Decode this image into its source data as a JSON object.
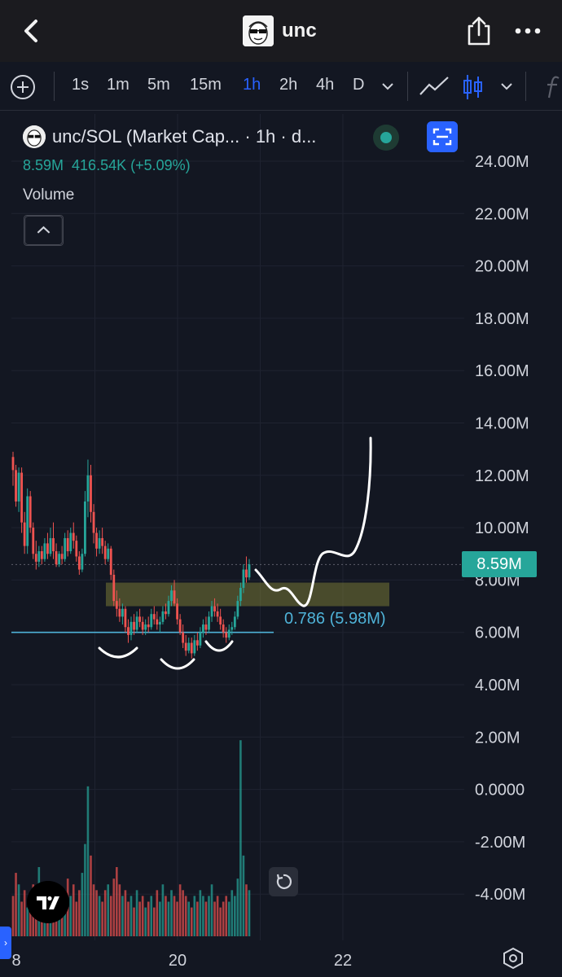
{
  "header": {
    "title": "unc",
    "back_icon": "chevron-left-icon",
    "share_icon": "share-icon",
    "more_icon": "more-horizontal-icon"
  },
  "toolbar": {
    "timeframes": [
      "1s",
      "1m",
      "5m",
      "15m",
      "1h",
      "2h",
      "4h",
      "D"
    ],
    "active_timeframe": "1h",
    "icons": [
      "add-icon",
      "chevron-down-icon",
      "line-drawing-icon",
      "candles-icon",
      "chevron-down-icon",
      "indicators-icon"
    ]
  },
  "legend": {
    "title": "unc/SOL (Market Cap... · 1h · d...",
    "value": "8.59M",
    "change": "416.54K (+5.09%)",
    "volume_label": "Volume"
  },
  "price_badge": "8.59M",
  "fib_label": "0.786 (5.98M)",
  "colors": {
    "background": "#131722",
    "up": "#26a69a",
    "down": "#ef5350",
    "accent": "#2962ff",
    "fib": "#4fb3d8",
    "zone": "#8b8b3a"
  },
  "chart_data": {
    "type": "candlestick",
    "title": "",
    "y_axis": {
      "ticks": [
        "24.00M",
        "22.00M",
        "20.00M",
        "18.00M",
        "16.00M",
        "14.00M",
        "12.00M",
        "10.00M",
        "8.00M",
        "6.00M",
        "4.00M",
        "2.00M",
        "0.0000",
        "-2.00M",
        "-4.00M"
      ],
      "range": [
        -4.5,
        24.5
      ],
      "unit": "M"
    },
    "x_axis": {
      "ticks": [
        "8",
        "20",
        "22"
      ],
      "tick_positions": [
        18,
        20,
        22
      ],
      "range": [
        18,
        22.6
      ]
    },
    "last_price": 8.59,
    "support_line": 6.0,
    "fib_zone": [
      7.0,
      7.9
    ],
    "candles": [
      [
        12.7,
        12.9,
        11.6,
        12.2
      ],
      [
        12.2,
        12.4,
        10.8,
        11.0
      ],
      [
        11.0,
        12.3,
        10.6,
        12.1
      ],
      [
        12.1,
        12.3,
        9.8,
        10.2
      ],
      [
        10.2,
        10.6,
        9.0,
        9.3
      ],
      [
        9.3,
        11.5,
        9.0,
        11.2
      ],
      [
        11.2,
        11.4,
        9.8,
        10.0
      ],
      [
        10.0,
        10.2,
        8.8,
        9.0
      ],
      [
        9.0,
        9.5,
        8.4,
        8.7
      ],
      [
        8.7,
        9.3,
        8.5,
        9.1
      ],
      [
        9.1,
        9.3,
        8.6,
        8.8
      ],
      [
        8.8,
        9.6,
        8.7,
        9.4
      ],
      [
        9.4,
        9.8,
        8.8,
        9.0
      ],
      [
        9.0,
        10.0,
        8.9,
        9.6
      ],
      [
        9.6,
        10.2,
        8.8,
        9.1
      ],
      [
        9.1,
        9.4,
        8.5,
        8.6
      ],
      [
        8.6,
        9.1,
        8.5,
        9.0
      ],
      [
        9.0,
        9.3,
        8.6,
        8.8
      ],
      [
        8.8,
        9.8,
        8.7,
        9.6
      ],
      [
        9.6,
        9.9,
        8.9,
        9.1
      ],
      [
        9.1,
        10.0,
        9.0,
        9.8
      ],
      [
        9.8,
        10.2,
        9.2,
        9.5
      ],
      [
        9.5,
        9.7,
        8.7,
        8.9
      ],
      [
        8.9,
        9.1,
        8.2,
        8.4
      ],
      [
        8.4,
        9.2,
        8.3,
        9.0
      ],
      [
        9.0,
        11.4,
        8.9,
        11.0
      ],
      [
        11.0,
        12.6,
        10.4,
        12.0
      ],
      [
        12.0,
        12.4,
        10.2,
        10.6
      ],
      [
        10.6,
        10.9,
        9.4,
        9.8
      ],
      [
        9.8,
        10.0,
        8.9,
        9.2
      ],
      [
        9.2,
        9.9,
        9.0,
        9.6
      ],
      [
        9.6,
        10.0,
        9.0,
        9.3
      ],
      [
        9.3,
        9.5,
        8.6,
        8.8
      ],
      [
        8.8,
        9.4,
        8.7,
        9.2
      ],
      [
        9.2,
        9.3,
        8.0,
        8.2
      ],
      [
        8.2,
        8.4,
        7.0,
        7.2
      ],
      [
        7.2,
        7.6,
        6.6,
        6.9
      ],
      [
        6.9,
        7.3,
        6.4,
        6.6
      ],
      [
        6.6,
        7.1,
        6.3,
        6.9
      ],
      [
        6.9,
        7.0,
        6.0,
        6.2
      ],
      [
        6.2,
        6.5,
        5.6,
        5.9
      ],
      [
        5.9,
        6.6,
        5.7,
        6.4
      ],
      [
        6.4,
        6.7,
        5.9,
        6.1
      ],
      [
        6.1,
        6.8,
        6.0,
        6.6
      ],
      [
        6.6,
        6.9,
        6.2,
        6.4
      ],
      [
        6.4,
        6.6,
        5.9,
        6.1
      ],
      [
        6.1,
        6.5,
        5.9,
        6.3
      ],
      [
        6.3,
        6.6,
        6.0,
        6.2
      ],
      [
        6.2,
        6.9,
        6.1,
        6.7
      ],
      [
        6.7,
        7.0,
        6.3,
        6.5
      ],
      [
        6.5,
        6.8,
        6.1,
        6.3
      ],
      [
        6.3,
        6.6,
        6.0,
        6.4
      ],
      [
        6.4,
        7.0,
        6.3,
        6.8
      ],
      [
        6.8,
        7.1,
        6.5,
        6.7
      ],
      [
        6.7,
        7.4,
        6.6,
        7.2
      ],
      [
        7.2,
        7.8,
        7.0,
        7.6
      ],
      [
        7.6,
        8.0,
        7.0,
        7.1
      ],
      [
        7.1,
        7.3,
        6.3,
        6.5
      ],
      [
        6.5,
        6.7,
        5.9,
        6.0
      ],
      [
        6.0,
        6.3,
        5.4,
        5.6
      ],
      [
        5.6,
        5.9,
        5.1,
        5.3
      ],
      [
        5.3,
        5.8,
        5.2,
        5.6
      ],
      [
        5.6,
        5.8,
        5.0,
        5.2
      ],
      [
        5.2,
        5.9,
        5.1,
        5.7
      ],
      [
        5.7,
        6.0,
        5.3,
        5.5
      ],
      [
        5.5,
        6.2,
        5.4,
        6.0
      ],
      [
        6.0,
        6.5,
        5.8,
        6.3
      ],
      [
        6.3,
        6.6,
        5.9,
        6.1
      ],
      [
        6.1,
        6.8,
        6.0,
        6.6
      ],
      [
        6.6,
        7.2,
        6.4,
        7.0
      ],
      [
        7.0,
        7.3,
        6.6,
        6.8
      ],
      [
        6.8,
        7.1,
        6.4,
        6.6
      ],
      [
        6.6,
        6.9,
        6.1,
        6.3
      ],
      [
        6.3,
        6.5,
        5.8,
        6.0
      ],
      [
        6.0,
        6.2,
        5.6,
        5.8
      ],
      [
        5.8,
        6.3,
        5.7,
        6.1
      ],
      [
        6.1,
        6.4,
        5.9,
        6.2
      ],
      [
        6.2,
        6.8,
        6.1,
        6.6
      ],
      [
        6.6,
        7.4,
        6.5,
        7.2
      ],
      [
        7.2,
        7.9,
        7.0,
        7.7
      ],
      [
        7.7,
        8.6,
        7.5,
        8.4
      ],
      [
        8.4,
        8.9,
        7.9,
        8.1
      ],
      [
        8.1,
        8.8,
        8.0,
        8.6
      ]
    ],
    "volumes": [
      0.7,
      1.1,
      0.9,
      0.6,
      0.8,
      0.5,
      0.7,
      0.9,
      0.6,
      1.2,
      0.8,
      0.7,
      0.9,
      0.6,
      0.8,
      0.5,
      0.7,
      0.6,
      0.8,
      1.0,
      0.7,
      0.9,
      0.6,
      0.8,
      1.1,
      1.6,
      2.6,
      1.4,
      0.9,
      0.8,
      0.7,
      0.6,
      0.8,
      0.9,
      0.7,
      1.0,
      1.2,
      0.9,
      0.7,
      0.8,
      0.6,
      0.7,
      0.5,
      0.8,
      0.6,
      0.7,
      0.5,
      0.6,
      0.7,
      0.5,
      0.8,
      0.6,
      0.9,
      0.7,
      0.6,
      0.8,
      0.7,
      0.6,
      0.9,
      0.8,
      0.7,
      0.6,
      0.5,
      0.7,
      0.6,
      0.8,
      0.7,
      0.6,
      0.7,
      0.9,
      0.6,
      0.7,
      0.5,
      0.6,
      0.7,
      0.6,
      0.8,
      0.7,
      1.0,
      3.4,
      1.4,
      0.9,
      0.8
    ],
    "volume_range": [
      0,
      3.6
    ]
  }
}
